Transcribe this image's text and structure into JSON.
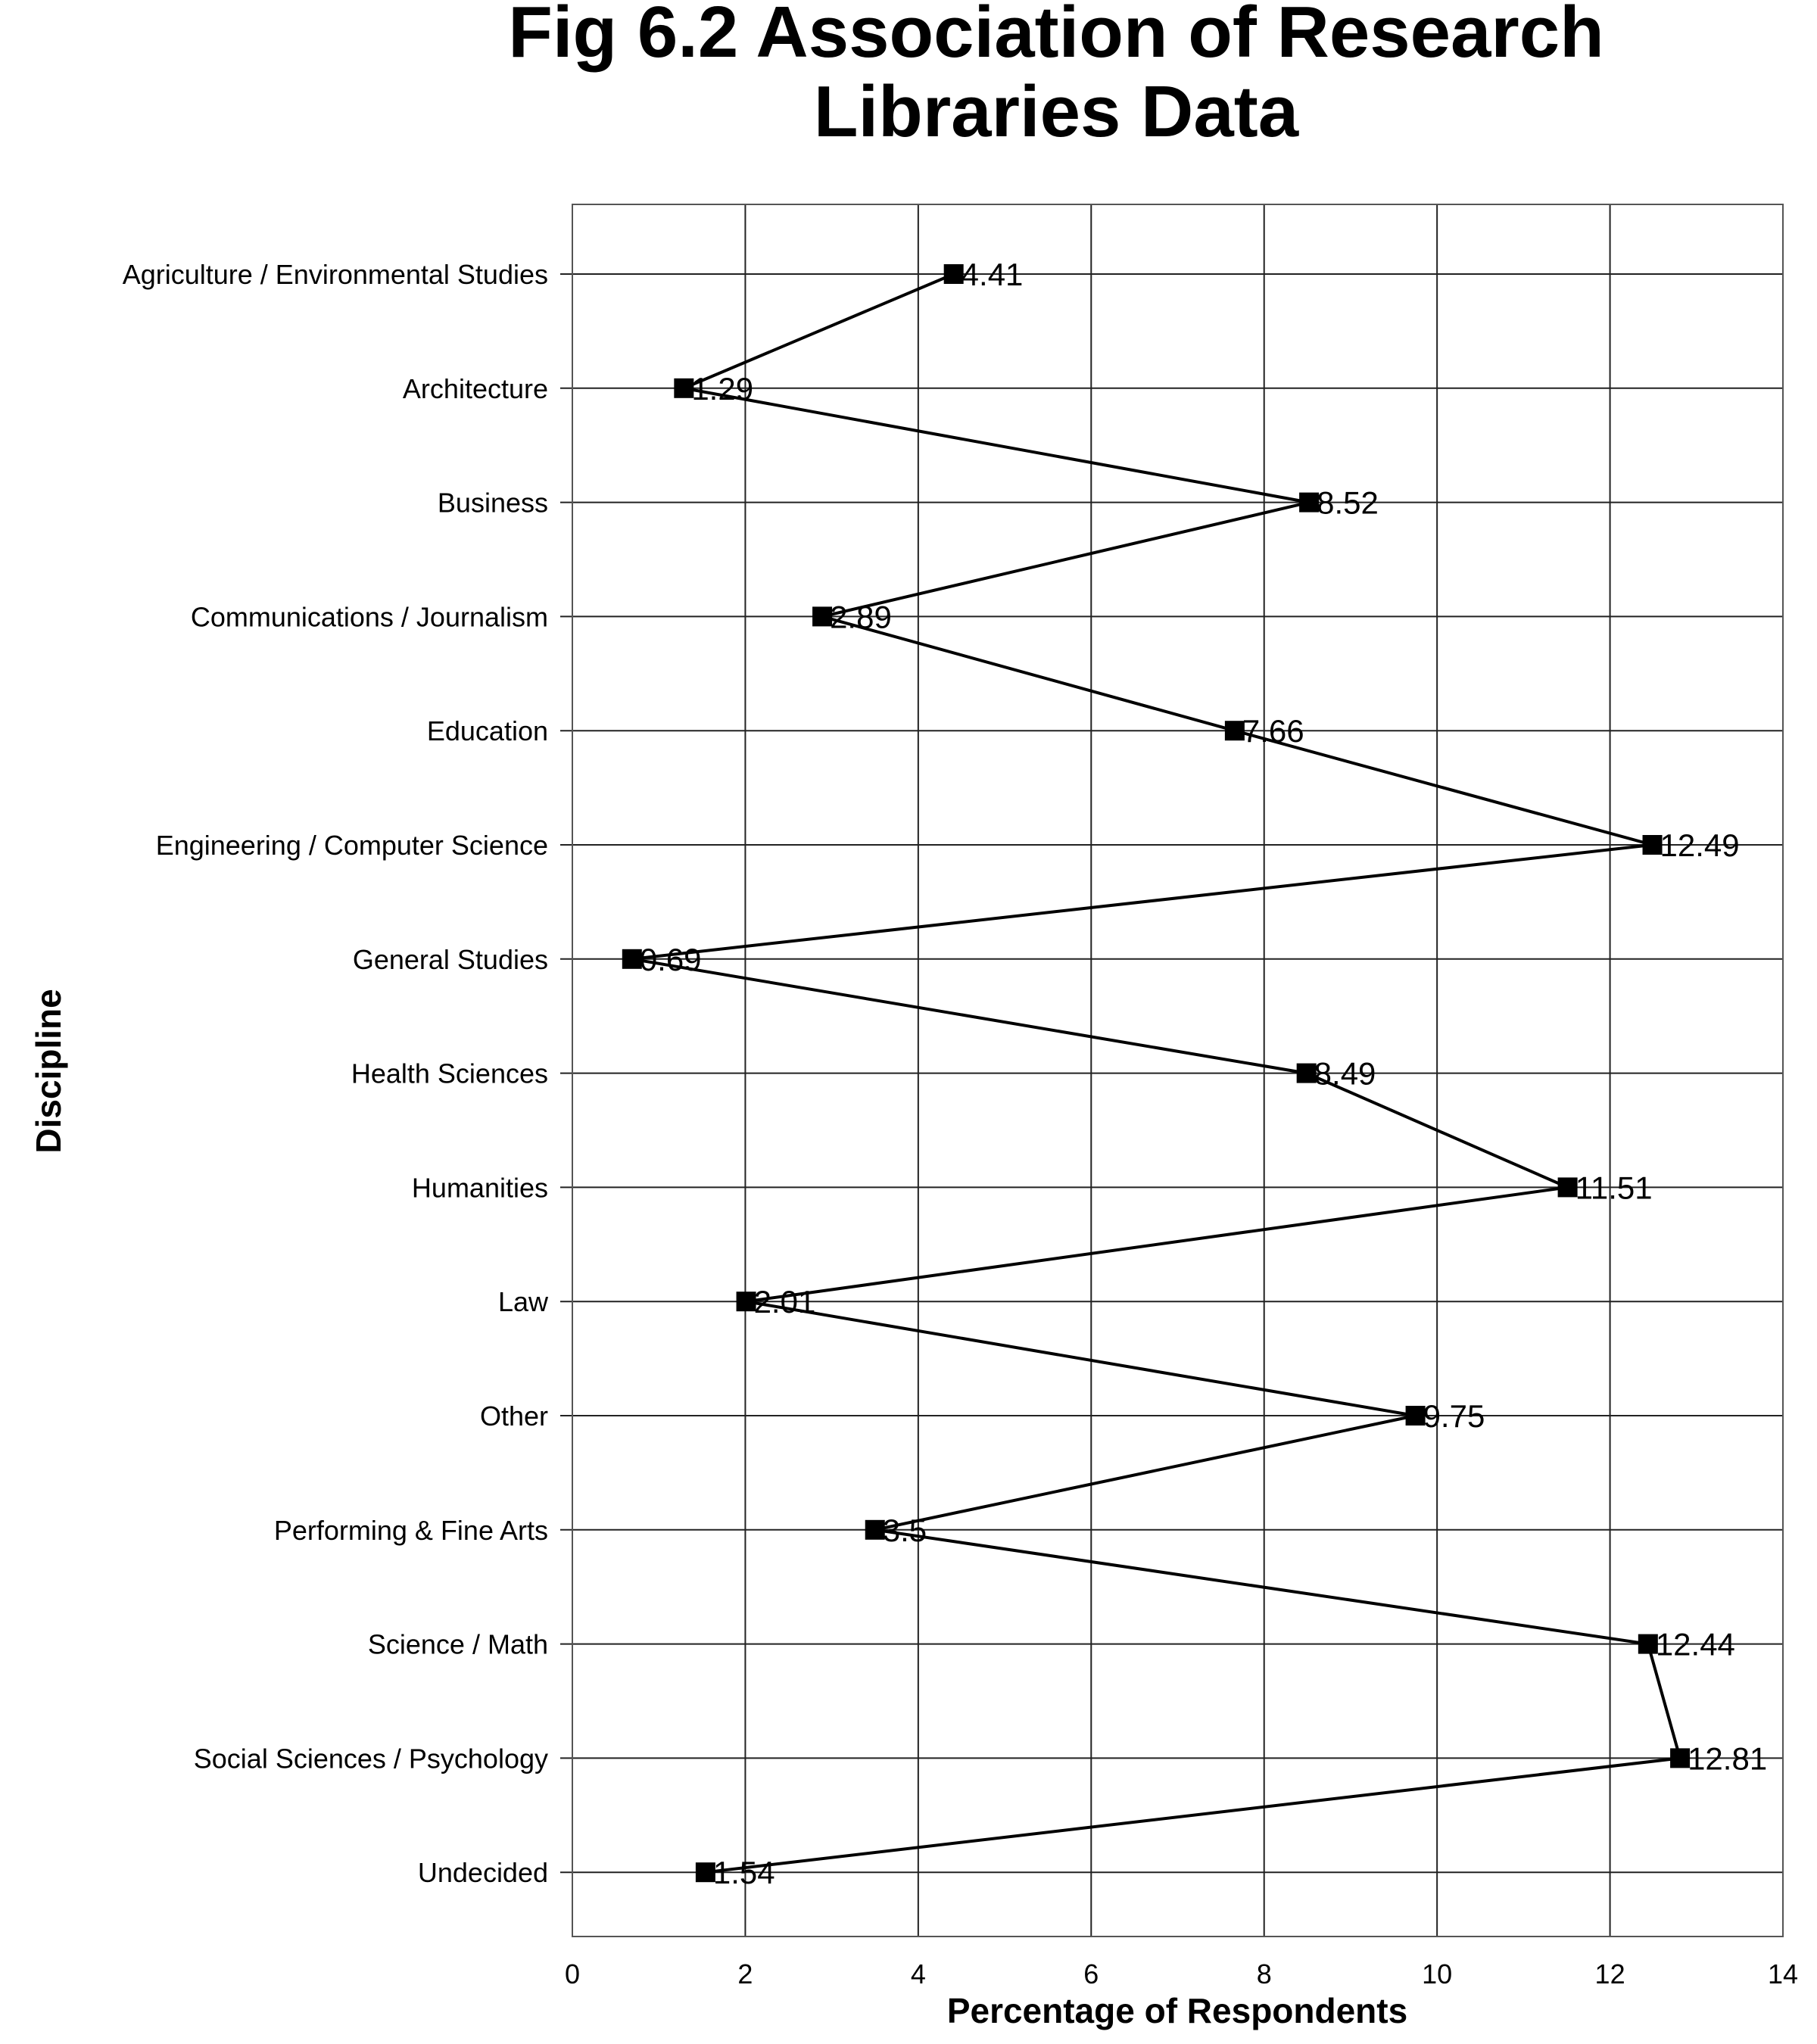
{
  "chart_data": {
    "type": "line",
    "title_lines": [
      "Fig 6.2 Association of Research",
      "Libraries Data"
    ],
    "xlabel": "Percentage of Respondents",
    "ylabel": "Discipline",
    "xlim": [
      0,
      14
    ],
    "xticks": [
      0,
      2,
      4,
      6,
      8,
      10,
      12,
      14
    ],
    "grid": true,
    "orientation": "horizontal-categories",
    "categories": [
      "Agriculture / Environmental Studies",
      "Architecture",
      "Business",
      "Communications / Journalism",
      "Education",
      "Engineering / Computer Science",
      "General Studies",
      "Health Sciences",
      "Humanities",
      "Law",
      "Other",
      "Performing & Fine Arts",
      "Science / Math",
      "Social Sciences / Psychology",
      "Undecided"
    ],
    "values": [
      4.41,
      1.29,
      8.52,
      2.89,
      7.66,
      12.49,
      0.69,
      8.49,
      11.51,
      2.01,
      9.75,
      3.5,
      12.44,
      12.81,
      1.54
    ],
    "value_labels": [
      "4.41",
      "1.29",
      "8.52",
      "2.89",
      "7.66",
      "12.49",
      "0.69",
      "8.49",
      "11.51",
      "2.01",
      "9.75",
      "3.5",
      "12.44",
      "12.81",
      "1.54"
    ],
    "series_color": "#000000",
    "marker": "square"
  }
}
